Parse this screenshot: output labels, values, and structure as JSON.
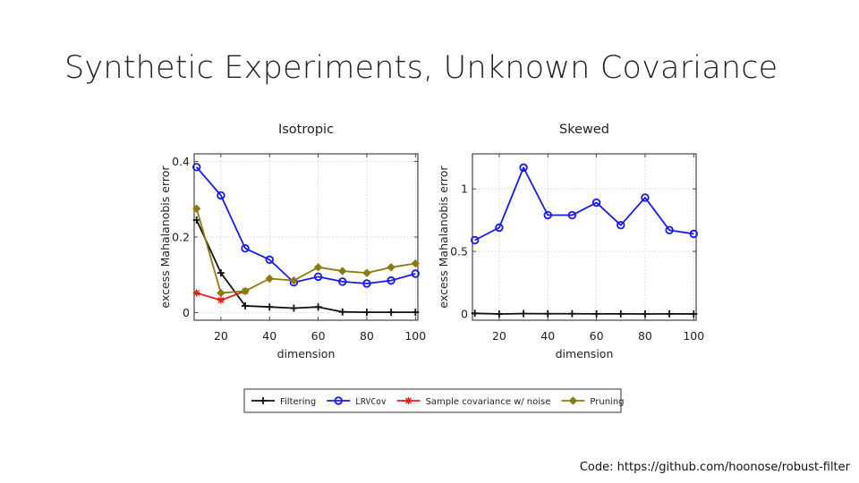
{
  "slide": {
    "title": "Synthetic Experiments, Unknown Covariance",
    "footer": "Code: https://github.com/hoonose/robust-filter"
  },
  "chart_data": [
    {
      "type": "line",
      "title": "Isotropic",
      "xlabel": "dimension",
      "ylabel": "excess Mahalanobis error",
      "xlim": [
        9,
        101
      ],
      "ylim": [
        -0.02,
        0.42
      ],
      "xticks": [
        20,
        40,
        60,
        80,
        100
      ],
      "yticks": [
        0,
        0.2,
        0.4
      ],
      "ytick_labels": [
        "0",
        "0.2",
        "0.4"
      ],
      "grid": true,
      "series": [
        {
          "name": "Filtering",
          "color": "#111111",
          "marker": "plus",
          "x": [
            10,
            20,
            30,
            40,
            50,
            60,
            70,
            80,
            90,
            100
          ],
          "y": [
            0.245,
            0.105,
            0.018,
            0.015,
            0.012,
            0.015,
            0.002,
            0.001,
            0.001,
            0.001
          ]
        },
        {
          "name": "LRVCov",
          "color": "#1a1ae6",
          "marker": "circle",
          "x": [
            10,
            20,
            30,
            40,
            50,
            60,
            70,
            80,
            90,
            100
          ],
          "y": [
            0.385,
            0.31,
            0.17,
            0.14,
            0.08,
            0.095,
            0.082,
            0.077,
            0.085,
            0.103
          ]
        },
        {
          "name": "Sample covariance w/ noise",
          "color": "#e61a1a",
          "marker": "star",
          "x": [
            10,
            20,
            30
          ],
          "y": [
            0.052,
            0.033,
            0.057
          ]
        },
        {
          "name": "Pruning",
          "color": "#8c7a10",
          "marker": "diamond",
          "x": [
            10,
            20,
            30,
            40,
            50,
            60,
            70,
            80,
            90,
            100
          ],
          "y": [
            0.275,
            0.052,
            0.057,
            0.09,
            0.085,
            0.12,
            0.11,
            0.105,
            0.12,
            0.13
          ]
        }
      ]
    },
    {
      "type": "line",
      "title": "Skewed",
      "xlabel": "dimension",
      "ylabel": "excess Mahalanobis error",
      "xlim": [
        9,
        101
      ],
      "ylim": [
        -0.05,
        1.28
      ],
      "xticks": [
        20,
        40,
        60,
        80,
        100
      ],
      "yticks": [
        0,
        0.5,
        1
      ],
      "ytick_labels": [
        "0",
        "0.5",
        "1"
      ],
      "grid": true,
      "series": [
        {
          "name": "LRVCov",
          "color": "#1a1ae6",
          "marker": "circle",
          "x": [
            10,
            20,
            30,
            40,
            50,
            60,
            70,
            80,
            90,
            100
          ],
          "y": [
            0.59,
            0.69,
            1.17,
            0.79,
            0.79,
            0.89,
            0.71,
            0.93,
            0.67,
            0.64
          ]
        },
        {
          "name": "Filtering",
          "color": "#111111",
          "marker": "plus",
          "x": [
            10,
            20,
            30,
            40,
            50,
            60,
            70,
            80,
            90,
            100
          ],
          "y": [
            0.005,
            0.0,
            0.003,
            0.002,
            0.002,
            0.001,
            0.001,
            0.0,
            0.001,
            0.0
          ]
        }
      ]
    }
  ],
  "legend": {
    "placement": "bottom",
    "entries": [
      {
        "label": "Filtering",
        "color": "#111111",
        "marker": "plus",
        "mono": false
      },
      {
        "label": "LRVCov",
        "color": "#1a1ae6",
        "marker": "circle",
        "mono": true
      },
      {
        "label": "Sample covariance w/ noise",
        "color": "#e61a1a",
        "marker": "star",
        "mono": false
      },
      {
        "label": "Pruning",
        "color": "#8c7a10",
        "marker": "diamond",
        "mono": false
      }
    ]
  }
}
